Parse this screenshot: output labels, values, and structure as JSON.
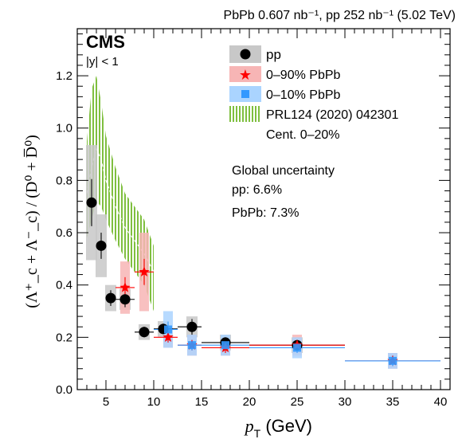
{
  "header": {
    "lumi": "PbPb 0.607 nb⁻¹, pp 252 nb⁻¹ (5.02 TeV)"
  },
  "experiment": {
    "name": "CMS",
    "rapidity": "|y| < 1"
  },
  "axes": {
    "xlabel": "p",
    "xlabel_sub": "T",
    "xlabel_unit": " (GeV)",
    "ylabel": "(Λ⁺_c + Λ⁻_c) / (D⁰ + D̅⁰)",
    "xticks": [
      "5",
      "10",
      "15",
      "20",
      "25",
      "30",
      "35",
      "40"
    ],
    "yticks": [
      "0.0",
      "0.2",
      "0.4",
      "0.6",
      "0.8",
      "1.0",
      "1.2"
    ]
  },
  "legend": {
    "pp": "pp",
    "pbpb090": "0–90% PbPb",
    "pbpb010": "0–10% PbPb",
    "prl_line1": "PRL124 (2020) 042301",
    "prl_line2": "Cent. 0–20%"
  },
  "global_uncertainty": {
    "title": "Global uncertainty",
    "pp": "pp: 6.6%",
    "pbpb": "PbPb: 7.3%"
  },
  "chart_data": {
    "type": "scatter",
    "xlim": [
      2,
      41
    ],
    "ylim": [
      0,
      1.38
    ],
    "x_axis_title": "pT (GeV)",
    "series": [
      {
        "name": "pp",
        "color": "#000000",
        "marker": "circle",
        "box_color": "#c8c8c8",
        "points": [
          {
            "x": 3.5,
            "xlo": 3,
            "xhi": 4,
            "y": 0.715,
            "stat": 0.09,
            "sys": 0.22
          },
          {
            "x": 4.5,
            "xlo": 4,
            "xhi": 5,
            "y": 0.55,
            "stat": 0.05,
            "sys": 0.12
          },
          {
            "x": 5.5,
            "xlo": 5,
            "xhi": 6,
            "y": 0.35,
            "stat": 0.03,
            "sys": 0.05
          },
          {
            "x": 7.0,
            "xlo": 6,
            "xhi": 8,
            "y": 0.345,
            "stat": 0.03,
            "sys": 0.04
          },
          {
            "x": 9.0,
            "xlo": 8,
            "xhi": 10,
            "y": 0.22,
            "stat": 0.02,
            "sys": 0.03
          },
          {
            "x": 11.0,
            "xlo": 10,
            "xhi": 12.5,
            "y": 0.232,
            "stat": 0.02,
            "sys": 0.03
          },
          {
            "x": 14.0,
            "xlo": 12.5,
            "xhi": 15,
            "y": 0.24,
            "stat": 0.03,
            "sys": 0.04
          },
          {
            "x": 17.5,
            "xlo": 15,
            "xhi": 20,
            "y": 0.18,
            "stat": 0.02,
            "sys": 0.03
          },
          {
            "x": 25.0,
            "xlo": 20,
            "xhi": 30,
            "y": 0.17,
            "stat": 0.02,
            "sys": 0.03
          }
        ]
      },
      {
        "name": "0–90% PbPb",
        "color": "#ff0000",
        "marker": "star",
        "box_color": "#f7b5b5",
        "points": [
          {
            "x": 7.0,
            "xlo": 6,
            "xhi": 8,
            "y": 0.39,
            "stat": 0.04,
            "sys": 0.1
          },
          {
            "x": 9.0,
            "xlo": 8,
            "xhi": 10,
            "y": 0.45,
            "stat": 0.05,
            "sys": 0.15
          },
          {
            "x": 11.5,
            "xlo": 10,
            "xhi": 12.5,
            "y": 0.2,
            "stat": 0.02,
            "sys": 0.04
          },
          {
            "x": 14.0,
            "xlo": 12.5,
            "xhi": 15,
            "y": 0.17,
            "stat": 0.02,
            "sys": 0.04
          },
          {
            "x": 17.5,
            "xlo": 15,
            "xhi": 20,
            "y": 0.16,
            "stat": 0.02,
            "sys": 0.03
          },
          {
            "x": 25.0,
            "xlo": 20,
            "xhi": 30,
            "y": 0.17,
            "stat": 0.02,
            "sys": 0.04
          },
          {
            "x": 35.0,
            "xlo": 30,
            "xhi": 40,
            "y": 0.11,
            "stat": 0.02,
            "sys": 0.03
          }
        ]
      },
      {
        "name": "0–10% PbPb",
        "color": "#3399ff",
        "marker": "square",
        "box_color": "#aad4ff",
        "points": [
          {
            "x": 11.5,
            "xlo": 10,
            "xhi": 12.5,
            "y": 0.23,
            "stat": 0.03,
            "sys": 0.07
          },
          {
            "x": 14.0,
            "xlo": 12.5,
            "xhi": 15,
            "y": 0.17,
            "stat": 0.02,
            "sys": 0.04
          },
          {
            "x": 17.5,
            "xlo": 15,
            "xhi": 20,
            "y": 0.17,
            "stat": 0.02,
            "sys": 0.04
          },
          {
            "x": 25.0,
            "xlo": 20,
            "xhi": 30,
            "y": 0.16,
            "stat": 0.02,
            "sys": 0.04
          },
          {
            "x": 35.0,
            "xlo": 30,
            "xhi": 40,
            "y": 0.11,
            "stat": 0.02,
            "sys": 0.03
          }
        ]
      }
    ],
    "model_band": {
      "name": "PRL124 (2020) 042301",
      "color": "#7fbf3f",
      "x": [
        3.0,
        3.5,
        4.0,
        4.5,
        5.0,
        6.0,
        7.0,
        8.0,
        9.0,
        10.0
      ],
      "upper": [
        0.95,
        1.15,
        1.2,
        1.1,
        0.97,
        0.85,
        0.75,
        0.7,
        0.65,
        0.55
      ],
      "lower": [
        0.58,
        0.65,
        0.72,
        0.7,
        0.65,
        0.57,
        0.5,
        0.45,
        0.4,
        0.3
      ],
      "mid": [
        0.75,
        0.85,
        0.92,
        0.88,
        0.8,
        0.7,
        0.62,
        0.57,
        0.52,
        0.45
      ]
    }
  }
}
